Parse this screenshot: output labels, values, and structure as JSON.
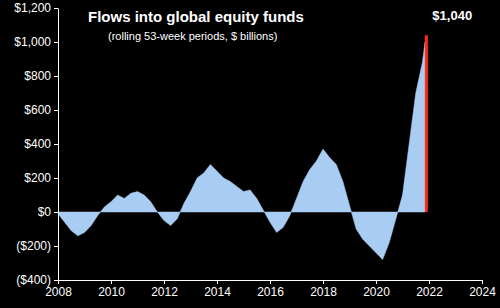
{
  "chart_data": {
    "type": "area",
    "title": "Flows into global equity funds",
    "subtitle": "(rolling 53-week periods, $ billions)",
    "x": [
      2008,
      2008.25,
      2008.5,
      2008.75,
      2009,
      2009.25,
      2009.5,
      2009.75,
      2010,
      2010.25,
      2010.5,
      2010.75,
      2011,
      2011.25,
      2011.5,
      2011.75,
      2012,
      2012.25,
      2012.5,
      2012.75,
      2013,
      2013.25,
      2013.5,
      2013.75,
      2014,
      2014.25,
      2014.5,
      2014.75,
      2015,
      2015.25,
      2015.5,
      2015.75,
      2016,
      2016.25,
      2016.5,
      2016.75,
      2017,
      2017.25,
      2017.5,
      2017.75,
      2018,
      2018.25,
      2018.5,
      2018.75,
      2019,
      2019.25,
      2019.5,
      2019.75,
      2020,
      2020.25,
      2020.5,
      2020.75,
      2021,
      2021.25,
      2021.5,
      2021.75,
      2021.85
    ],
    "values": [
      -10,
      -60,
      -110,
      -140,
      -120,
      -80,
      -20,
      30,
      60,
      100,
      80,
      110,
      120,
      100,
      60,
      0,
      -50,
      -80,
      -40,
      50,
      120,
      200,
      230,
      280,
      240,
      200,
      180,
      150,
      120,
      130,
      80,
      10,
      -60,
      -120,
      -90,
      -20,
      80,
      180,
      250,
      300,
      370,
      320,
      280,
      180,
      40,
      -100,
      -160,
      -200,
      -240,
      -280,
      -180,
      -40,
      100,
      400,
      700,
      880,
      1000
    ],
    "color": "#a9cdf2",
    "highlight": {
      "x": 2021.9,
      "value": 1040,
      "label": "$1,040",
      "color": "#ff2a1a"
    },
    "xlim": [
      2008,
      2024
    ],
    "xticks": [
      2008,
      2010,
      2012,
      2014,
      2016,
      2018,
      2020,
      2022,
      2024
    ],
    "ylim": [
      -400,
      1200
    ],
    "yticks": [
      {
        "value": -400,
        "label": "($400)"
      },
      {
        "value": -200,
        "label": "($200)"
      },
      {
        "value": 0,
        "label": "$0"
      },
      {
        "value": 200,
        "label": "$200"
      },
      {
        "value": 400,
        "label": "$400"
      },
      {
        "value": 600,
        "label": "$600"
      },
      {
        "value": 800,
        "label": "$800"
      },
      {
        "value": 1000,
        "label": "$1,000"
      },
      {
        "value": 1200,
        "label": "$1,200"
      }
    ],
    "grid": false
  }
}
